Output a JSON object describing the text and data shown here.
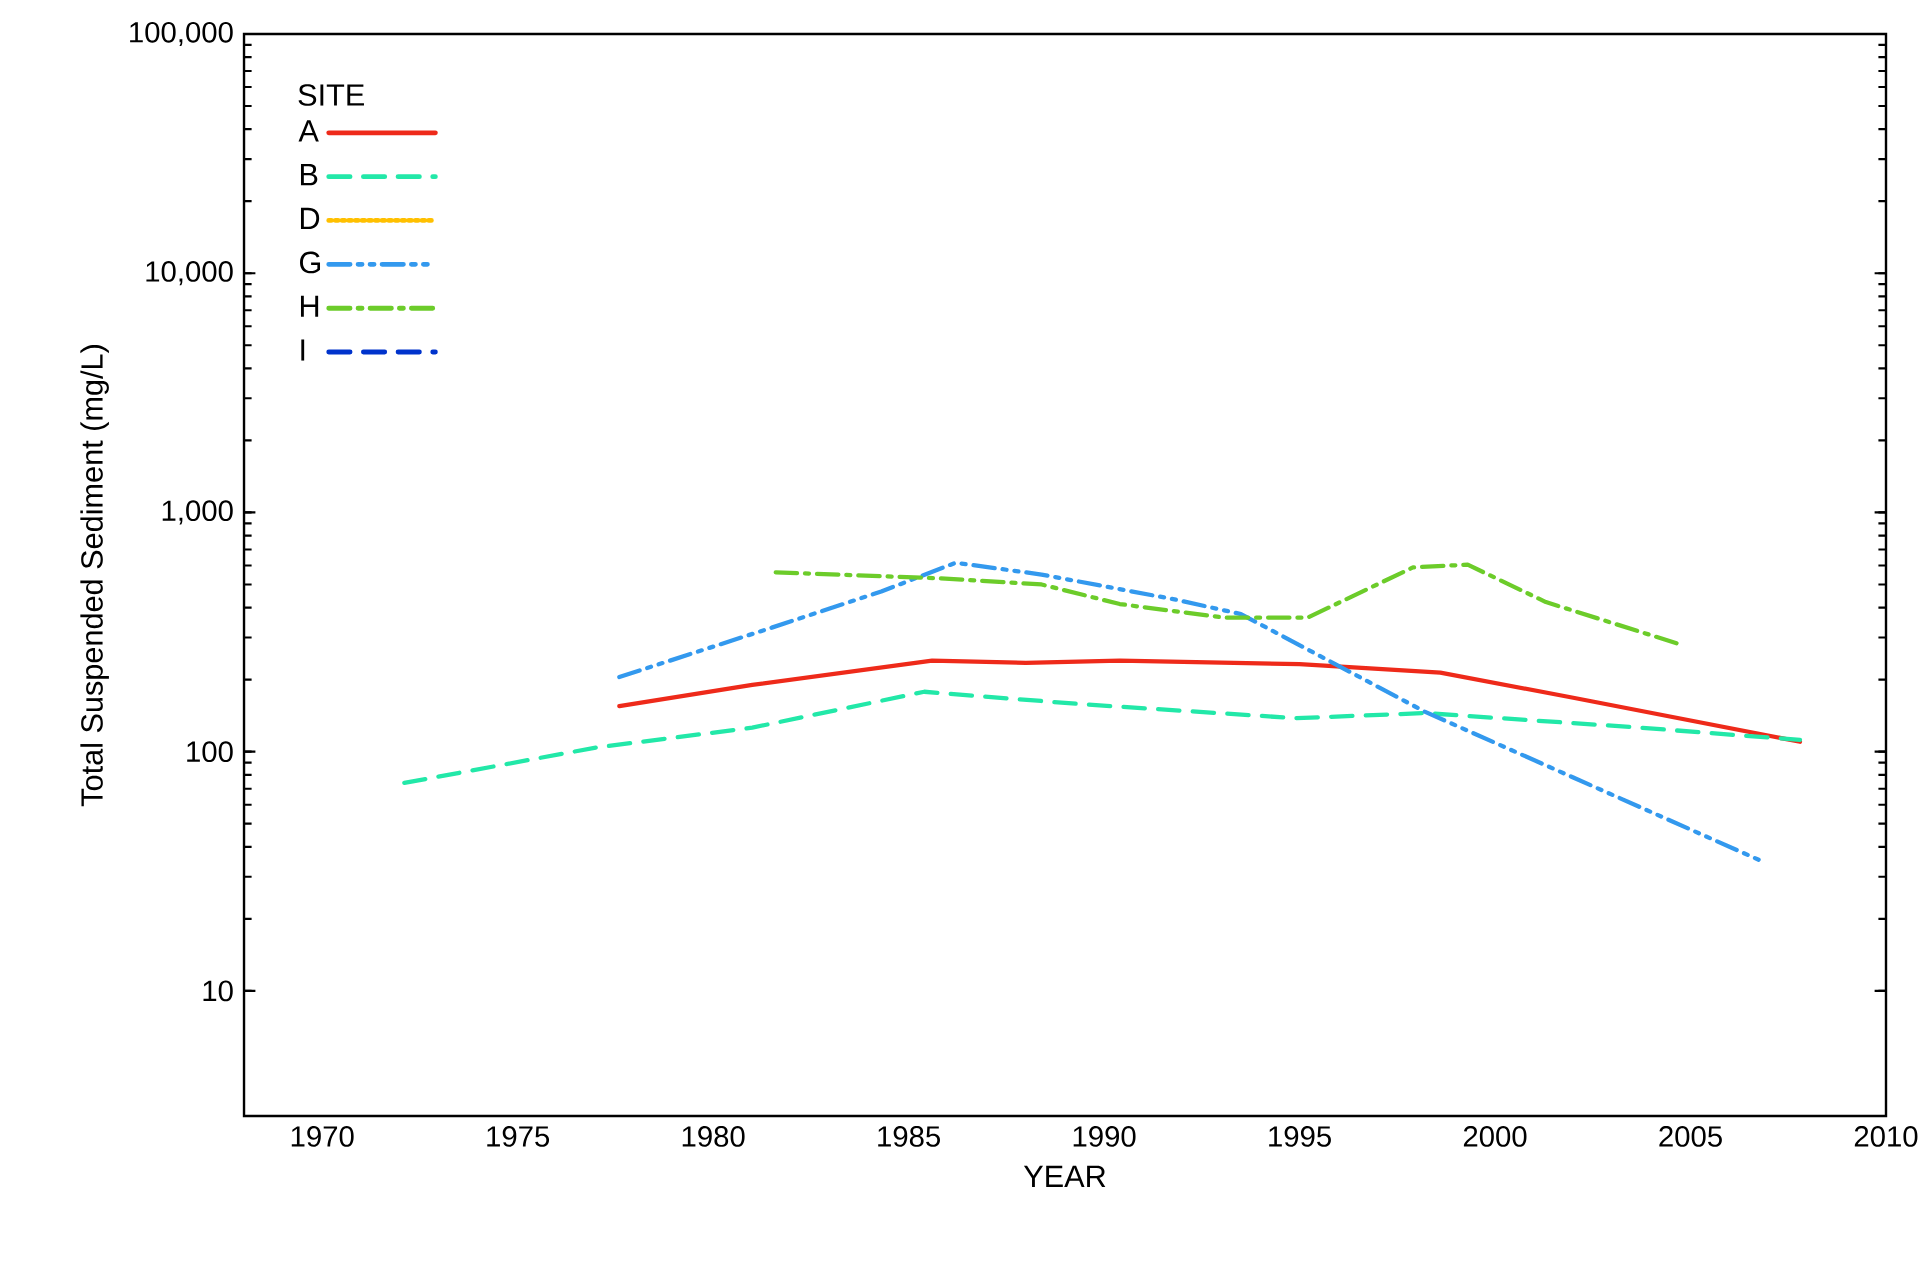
{
  "chart_data": {
    "type": "line",
    "xlabel": "YEAR",
    "ylabel": "Total Suspended Sediment (mg/L)",
    "legend_title": "SITE",
    "legend": "top left",
    "log": "y",
    "grid": false,
    "xlim": [
      1968,
      2010
    ],
    "xticks": [
      1970,
      1975,
      1980,
      1985,
      1990,
      1995,
      2000,
      2005,
      2010
    ],
    "ylim": [
      3,
      100000
    ],
    "yticks": [
      10,
      100,
      {
        "value": 1000,
        "label": "1,000"
      },
      {
        "value": 10000,
        "label": "10,000"
      },
      {
        "value": 100000,
        "label": "100,000"
      }
    ],
    "series": [
      {
        "name": "A",
        "color": "#ee2a1a",
        "line_style": "solid",
        "x": [
          1977.6,
          1981,
          1985.6,
          1988,
          1990.4,
          1995,
          1998.6,
          2002,
          2007.8
        ],
        "values": [
          155,
          190,
          240,
          235,
          240,
          232,
          214,
          168,
          110
        ]
      },
      {
        "name": "B",
        "color": "#22e8a8",
        "line_style": "dashed",
        "x": [
          1972.1,
          1977,
          1981,
          1985.4,
          1989.4,
          1994.9,
          1998.2,
          2003.7,
          2007.8
        ],
        "values": [
          74,
          104,
          126,
          178,
          158,
          138,
          145,
          126,
          112
        ]
      },
      {
        "name": "D",
        "color": "#ffc000",
        "line_style": "dotted"
      },
      {
        "name": "G",
        "color": "#3399ee",
        "line_style": "dashdotdot",
        "x": [
          1977.6,
          1981.5,
          1984.3,
          1986.2,
          1988.4,
          1991.8,
          1993.5,
          1998.2,
          2002,
          2006.8
        ],
        "values": [
          205,
          330,
          467,
          616,
          550,
          433,
          376,
          147,
          78,
          35
        ]
      },
      {
        "name": "H",
        "color": "#6ccc2a",
        "line_style": "dashdot",
        "x": [
          1981.6,
          1985.8,
          1988.4,
          1990.4,
          1993.1,
          1995.2,
          1997.9,
          1999.3,
          2001.3,
          2004.7
        ],
        "values": [
          562,
          530,
          500,
          414,
          363,
          363,
          589,
          605,
          422,
          282
        ]
      },
      {
        "name": "I",
        "color": "#0033cc",
        "line_style": "dashed"
      }
    ]
  }
}
